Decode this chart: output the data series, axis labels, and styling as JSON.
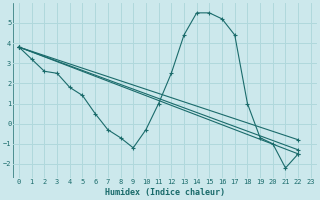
{
  "xlabel": "Humidex (Indice chaleur)",
  "bg_color": "#cce8ec",
  "line_color": "#1a6b6b",
  "grid_color": "#b0d8dc",
  "xlim": [
    -0.5,
    23.5
  ],
  "ylim": [
    -2.7,
    6.0
  ],
  "yticks": [
    -2,
    -1,
    0,
    1,
    2,
    3,
    4,
    5
  ],
  "xticks": [
    0,
    1,
    2,
    3,
    4,
    5,
    6,
    7,
    8,
    9,
    10,
    11,
    12,
    13,
    14,
    15,
    16,
    17,
    18,
    19,
    20,
    21,
    22,
    23
  ],
  "lines": [
    {
      "x": [
        0,
        1,
        2,
        3,
        4,
        5,
        6,
        7,
        8,
        9,
        10,
        11,
        12,
        13,
        14,
        15,
        16,
        17,
        18,
        19,
        20,
        21,
        22
      ],
      "y": [
        3.8,
        3.2,
        2.6,
        2.5,
        1.8,
        1.4,
        0.5,
        -0.3,
        -0.7,
        -1.2,
        -0.3,
        1.0,
        2.5,
        4.4,
        5.5,
        5.5,
        5.2,
        4.4,
        1.0,
        -0.7,
        -1.0,
        -2.2,
        -1.5
      ]
    },
    {
      "x": [
        0,
        22
      ],
      "y": [
        3.8,
        -1.3
      ]
    },
    {
      "x": [
        0,
        22
      ],
      "y": [
        3.8,
        -0.8
      ]
    },
    {
      "x": [
        0,
        22
      ],
      "y": [
        3.8,
        -1.5
      ]
    }
  ]
}
